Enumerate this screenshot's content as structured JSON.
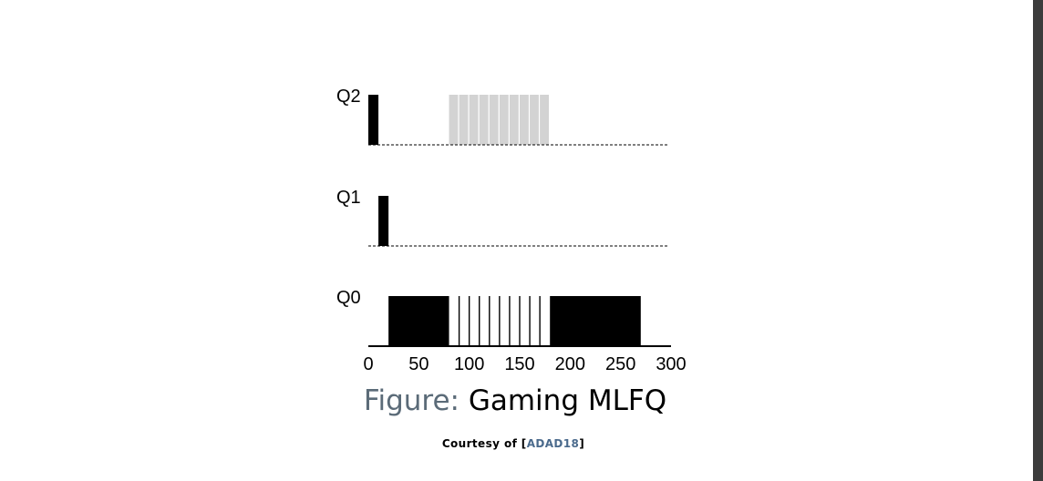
{
  "chart_data": {
    "type": "mlfq-timeline",
    "x_range": [
      0,
      300
    ],
    "x_ticks": [
      0,
      50,
      100,
      150,
      200,
      250,
      300
    ],
    "queues": [
      {
        "label": "Q2",
        "segments": [
          [
            0,
            10
          ]
        ],
        "waiting_segments": [
          [
            80,
            180
          ]
        ]
      },
      {
        "label": "Q1",
        "segments": [
          [
            10,
            20
          ]
        ],
        "waiting_segments": []
      },
      {
        "label": "Q0",
        "segments": [
          [
            20,
            80
          ],
          [
            180,
            270
          ]
        ],
        "thin_slices": [
          90,
          100,
          110,
          120,
          130,
          140,
          150,
          160,
          170
        ]
      }
    ],
    "colors": {
      "job": "#000000",
      "waiting": "#d3d3d3",
      "axis": "#000000"
    }
  },
  "caption": {
    "label": "Figure:",
    "title": "Gaming MLFQ"
  },
  "courtesy": {
    "prefix": "Courtesy of",
    "open": "[",
    "cite": "ADAD18",
    "close": "]"
  }
}
